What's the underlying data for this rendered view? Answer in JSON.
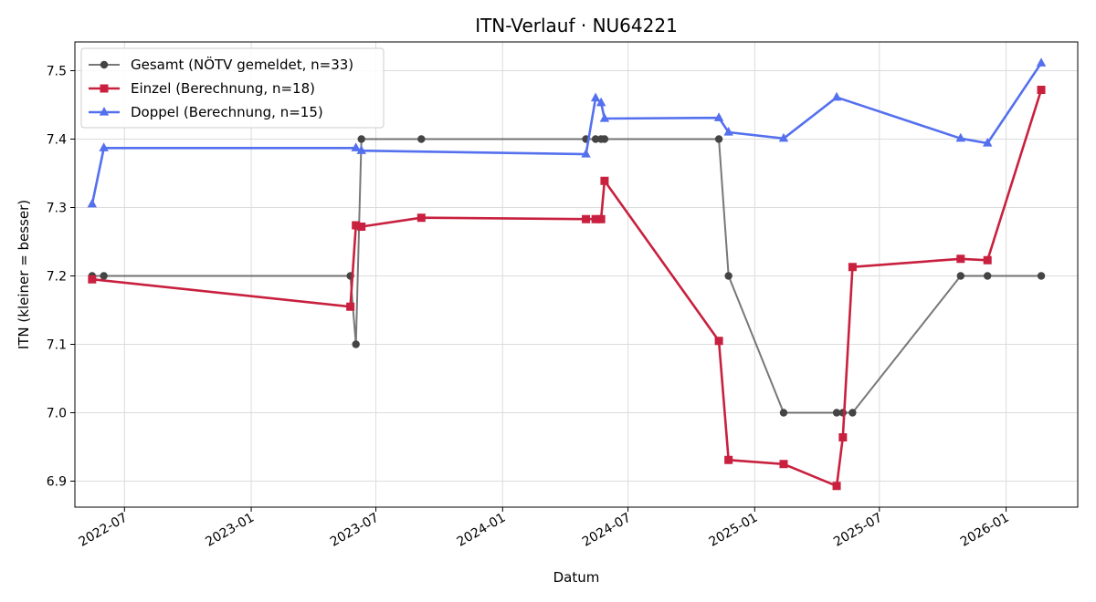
{
  "chart_data": {
    "type": "line",
    "title": "ITN-Verlauf · NU64221",
    "xlabel": "Datum",
    "ylabel": "ITN  (kleiner = besser)",
    "x_type": "date",
    "xlim": [
      "2022-04-20",
      "2026-04-15"
    ],
    "ylim": [
      6.862,
      7.542
    ],
    "x_ticks": [
      "2022-07-01",
      "2023-01-01",
      "2023-07-01",
      "2024-01-01",
      "2024-07-01",
      "2025-01-01",
      "2025-07-01",
      "2026-01-01"
    ],
    "x_tick_labels": [
      "2022-07",
      "2023-01",
      "2023-07",
      "2024-01",
      "2024-07",
      "2025-01",
      "2025-07",
      "2026-01"
    ],
    "y_ticks": [
      6.9,
      7.0,
      7.1,
      7.2,
      7.3,
      7.4,
      7.5
    ],
    "y_tick_labels": [
      "6.9",
      "7.0",
      "7.1",
      "7.2",
      "7.3",
      "7.4",
      "7.5"
    ],
    "grid": true,
    "legend_position": "top-left",
    "series": [
      {
        "name": "Gesamt (NÖTV gemeldet, n=33)",
        "color": "#444444",
        "marker": "circle",
        "points": [
          {
            "x": "2022-05-15",
            "y": 7.2
          },
          {
            "x": "2022-06-01",
            "y": 7.2
          },
          {
            "x": "2023-05-25",
            "y": 7.2
          },
          {
            "x": "2023-06-02",
            "y": 7.1
          },
          {
            "x": "2023-06-10",
            "y": 7.4
          },
          {
            "x": "2023-09-05",
            "y": 7.4
          },
          {
            "x": "2024-05-01",
            "y": 7.4
          },
          {
            "x": "2024-05-15",
            "y": 7.4
          },
          {
            "x": "2024-05-23",
            "y": 7.4
          },
          {
            "x": "2024-05-28",
            "y": 7.4
          },
          {
            "x": "2024-11-10",
            "y": 7.4
          },
          {
            "x": "2024-11-24",
            "y": 7.2
          },
          {
            "x": "2025-02-12",
            "y": 7.0
          },
          {
            "x": "2025-04-30",
            "y": 7.0
          },
          {
            "x": "2025-05-09",
            "y": 7.0
          },
          {
            "x": "2025-05-23",
            "y": 7.0
          },
          {
            "x": "2025-10-27",
            "y": 7.2
          },
          {
            "x": "2025-12-05",
            "y": 7.2
          },
          {
            "x": "2026-02-21",
            "y": 7.2
          }
        ]
      },
      {
        "name": "Einzel (Berechnung, n=18)",
        "color": "#c8203e",
        "marker": "square",
        "points": [
          {
            "x": "2022-05-15",
            "y": 7.195
          },
          {
            "x": "2023-05-25",
            "y": 7.155
          },
          {
            "x": "2023-06-02",
            "y": 7.274
          },
          {
            "x": "2023-06-10",
            "y": 7.272
          },
          {
            "x": "2023-09-05",
            "y": 7.285
          },
          {
            "x": "2024-05-01",
            "y": 7.283
          },
          {
            "x": "2024-05-15",
            "y": 7.283
          },
          {
            "x": "2024-05-23",
            "y": 7.283
          },
          {
            "x": "2024-05-28",
            "y": 7.339
          },
          {
            "x": "2024-11-10",
            "y": 7.105
          },
          {
            "x": "2024-11-24",
            "y": 6.931
          },
          {
            "x": "2025-02-12",
            "y": 6.925
          },
          {
            "x": "2025-04-30",
            "y": 6.893
          },
          {
            "x": "2025-05-09",
            "y": 6.964
          },
          {
            "x": "2025-05-23",
            "y": 7.213
          },
          {
            "x": "2025-10-27",
            "y": 7.225
          },
          {
            "x": "2025-12-05",
            "y": 7.223
          },
          {
            "x": "2026-02-21",
            "y": 7.472
          }
        ]
      },
      {
        "name": "Doppel (Berechnung, n=15)",
        "color": "#5470ee",
        "marker": "triangle",
        "points": [
          {
            "x": "2022-05-15",
            "y": 7.305
          },
          {
            "x": "2022-06-01",
            "y": 7.387
          },
          {
            "x": "2023-06-02",
            "y": 7.387
          },
          {
            "x": "2023-06-10",
            "y": 7.383
          },
          {
            "x": "2024-05-01",
            "y": 7.378
          },
          {
            "x": "2024-05-15",
            "y": 7.46
          },
          {
            "x": "2024-05-23",
            "y": 7.453
          },
          {
            "x": "2024-05-28",
            "y": 7.43
          },
          {
            "x": "2024-11-10",
            "y": 7.431
          },
          {
            "x": "2024-11-24",
            "y": 7.41
          },
          {
            "x": "2025-02-12",
            "y": 7.401
          },
          {
            "x": "2025-04-30",
            "y": 7.461
          },
          {
            "x": "2025-10-27",
            "y": 7.401
          },
          {
            "x": "2025-12-05",
            "y": 7.394
          },
          {
            "x": "2026-02-21",
            "y": 7.511
          }
        ]
      }
    ]
  }
}
